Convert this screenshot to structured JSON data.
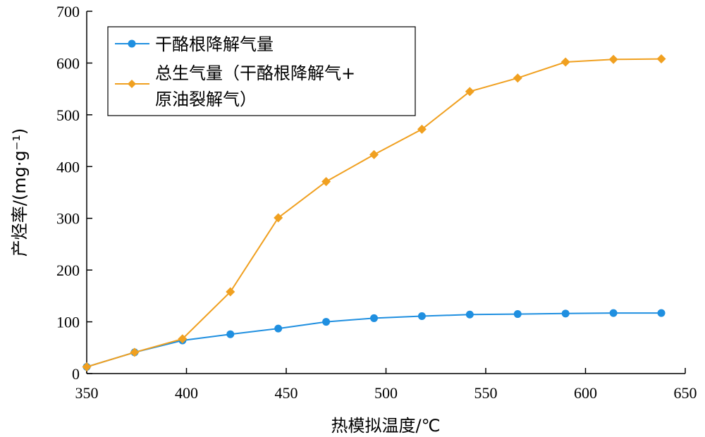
{
  "chart_data": {
    "type": "line",
    "xlabel": "热模拟温度/℃",
    "ylabel": "产烃率/(mg·g⁻¹)",
    "xlim": [
      350,
      650
    ],
    "ylim": [
      0,
      700
    ],
    "x_ticks": [
      "350",
      "400",
      "450",
      "500",
      "550",
      "600",
      "650"
    ],
    "y_ticks": [
      "0",
      "100",
      "200",
      "300",
      "400",
      "500",
      "600",
      "700"
    ],
    "grid": false,
    "legend_position": "top-left",
    "x": [
      350,
      374,
      398,
      422,
      446,
      470,
      494,
      518,
      542,
      566,
      590,
      614,
      638
    ],
    "series": [
      {
        "name": "干酪根降解气量",
        "color": "#1f8fe0",
        "marker": "circle",
        "values": [
          13,
          41,
          64,
          76,
          87,
          100,
          107,
          111,
          114,
          115,
          116,
          117,
          117
        ]
      },
      {
        "name_lines": [
          "总生气量（干酪根降解气+",
          "原油裂解气）"
        ],
        "color": "#f0a020",
        "marker": "diamond",
        "values": [
          13,
          41,
          67,
          158,
          301,
          371,
          423,
          472,
          545,
          571,
          602,
          607,
          608
        ]
      }
    ]
  }
}
